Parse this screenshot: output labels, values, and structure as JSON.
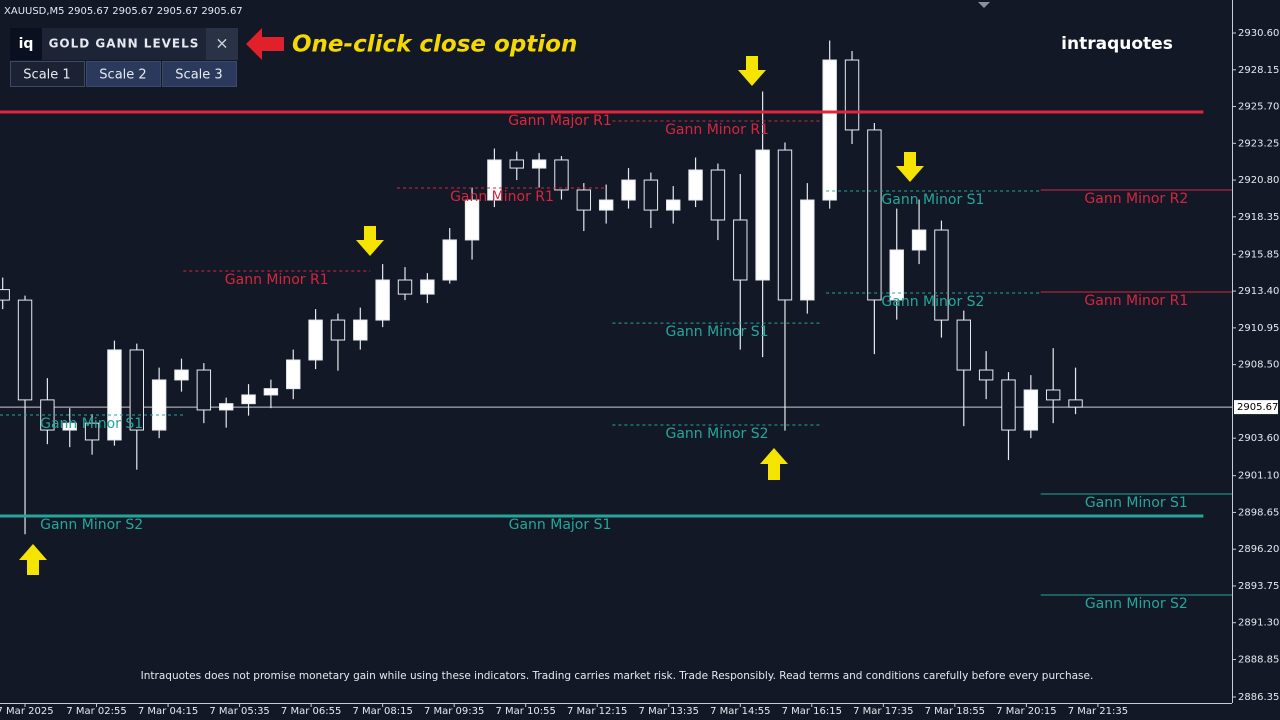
{
  "chart_data": {
    "type": "candlestick",
    "symbol_info": "XAUUSD,M5  2905.67 2905.67 2905.67 2905.67",
    "x": [
      -25,
      0,
      25,
      50,
      75,
      100,
      125,
      150,
      175,
      200,
      225,
      250,
      275,
      300,
      325,
      350,
      375,
      400,
      425,
      450,
      475,
      500,
      525,
      550,
      575,
      600,
      625,
      650,
      675,
      700,
      725,
      750,
      775,
      800,
      825,
      850,
      875,
      900,
      925,
      950,
      975,
      1000,
      1025,
      1050,
      1075,
      1100,
      1125,
      1150,
      1175
    ],
    "open": [
      2913.5,
      2912.8,
      2906.15,
      2904.14,
      2904.6,
      2903.48,
      2909.48,
      2904.14,
      2907.48,
      2908.14,
      2905.48,
      2905.9,
      2906.48,
      2906.9,
      2908.81,
      2911.47,
      2910.14,
      2911.47,
      2914.14,
      2913.2,
      2914.14,
      2916.81,
      2919.47,
      2922.14,
      2921.6,
      2922.14,
      2920.14,
      2918.8,
      2919.47,
      2920.8,
      2918.8,
      2919.47,
      2921.47,
      2918.14,
      2914.14,
      2922.8,
      2912.81,
      2919.47,
      2928.8,
      2924.14,
      2912.81,
      2916.14,
      2917.47,
      2911.47,
      2908.14,
      2907.48,
      2904.14,
      2906.81,
      2906.15
    ],
    "high": [
      2914.3,
      2913.1,
      2907.6,
      2905.6,
      2905.2,
      2910.1,
      2909.9,
      2908.3,
      2908.9,
      2908.6,
      2906.3,
      2907.2,
      2907.5,
      2909.5,
      2912.2,
      2911.9,
      2912.3,
      2915.2,
      2915.0,
      2914.6,
      2917.6,
      2920.3,
      2922.9,
      2922.7,
      2922.6,
      2922.4,
      2920.6,
      2920.5,
      2921.6,
      2921.3,
      2920.4,
      2922.3,
      2921.9,
      2921.2,
      2926.7,
      2923.3,
      2920.6,
      2930.1,
      2929.4,
      2924.6,
      2918.9,
      2919.5,
      2918.1,
      2912.1,
      2909.4,
      2908.0,
      2907.8,
      2909.6,
      2908.3
    ],
    "low": [
      2912.2,
      2897.2,
      2903.2,
      2903.0,
      2902.5,
      2903.1,
      2901.5,
      2903.6,
      2906.7,
      2904.6,
      2904.3,
      2905.1,
      2905.6,
      2906.2,
      2908.2,
      2908.1,
      2909.5,
      2911.0,
      2912.8,
      2912.6,
      2913.9,
      2915.5,
      2919.0,
      2920.8,
      2920.3,
      2919.5,
      2917.4,
      2917.9,
      2918.9,
      2917.6,
      2917.9,
      2919.0,
      2916.8,
      2909.5,
      2909.0,
      2904.1,
      2911.9,
      2918.9,
      2923.2,
      2909.2,
      2911.5,
      2915.2,
      2910.3,
      2904.4,
      2906.2,
      2902.14,
      2903.6,
      2904.6,
      2905.2
    ],
    "close": [
      2912.8,
      2906.15,
      2904.14,
      2904.6,
      2903.48,
      2909.48,
      2904.14,
      2907.48,
      2908.14,
      2905.48,
      2905.9,
      2906.48,
      2906.9,
      2908.81,
      2911.47,
      2910.14,
      2911.47,
      2914.14,
      2913.2,
      2914.14,
      2916.81,
      2919.47,
      2922.14,
      2921.6,
      2922.14,
      2920.14,
      2918.8,
      2919.47,
      2920.8,
      2918.8,
      2919.47,
      2921.47,
      2918.14,
      2914.14,
      2922.8,
      2912.81,
      2919.47,
      2928.8,
      2924.14,
      2912.81,
      2916.14,
      2917.47,
      2911.47,
      2908.14,
      2907.48,
      2904.14,
      2906.81,
      2906.15,
      2905.67
    ],
    "up_color": "#ffffff",
    "down_color": "#121826",
    "wick_color": "#e6e9f0",
    "xlim": [
      -28,
      1350
    ],
    "xticks": [
      {
        "value": 0,
        "label": "7 Mar 2025"
      },
      {
        "value": 80,
        "label": "7 Mar 02:55"
      },
      {
        "value": 160,
        "label": "7 Mar 04:15"
      },
      {
        "value": 240,
        "label": "7 Mar 05:35"
      },
      {
        "value": 320,
        "label": "7 Mar 06:55"
      },
      {
        "value": 400,
        "label": "7 Mar 08:15"
      },
      {
        "value": 480,
        "label": "7 Mar 09:35"
      },
      {
        "value": 560,
        "label": "7 Mar 10:55"
      },
      {
        "value": 640,
        "label": "7 Mar 12:15"
      },
      {
        "value": 720,
        "label": "7 Mar 13:35"
      },
      {
        "value": 800,
        "label": "7 Mar 14:55"
      },
      {
        "value": 880,
        "label": "7 Mar 16:15"
      },
      {
        "value": 960,
        "label": "7 Mar 17:35"
      },
      {
        "value": 1040,
        "label": "7 Mar 18:55"
      },
      {
        "value": 1120,
        "label": "7 Mar 20:15"
      },
      {
        "value": 1200,
        "label": "7 Mar 21:35"
      }
    ],
    "ylim": [
      2885.95,
      2932.8
    ],
    "yticks": [
      {
        "value": 2930.6,
        "label": "2930.60"
      },
      {
        "value": 2928.15,
        "label": "2928.15"
      },
      {
        "value": 2925.7,
        "label": "2925.70"
      },
      {
        "value": 2923.25,
        "label": "2923.25"
      },
      {
        "value": 2920.8,
        "label": "2920.80"
      },
      {
        "value": 2918.35,
        "label": "2918.35"
      },
      {
        "value": 2915.85,
        "label": "2915.85"
      },
      {
        "value": 2913.4,
        "label": "2913.40"
      },
      {
        "value": 2910.95,
        "label": "2910.95"
      },
      {
        "value": 2908.5,
        "label": "2908.50"
      },
      {
        "value": 2903.6,
        "label": "2903.60"
      },
      {
        "value": 2901.1,
        "label": "2901.10"
      },
      {
        "value": 2898.65,
        "label": "2898.65"
      },
      {
        "value": 2896.2,
        "label": "2896.20"
      },
      {
        "value": 2893.75,
        "label": "2893.75"
      },
      {
        "value": 2891.3,
        "label": "2891.30"
      },
      {
        "value": 2888.85,
        "label": "2888.85"
      },
      {
        "value": 2886.35,
        "label": "2886.35"
      }
    ],
    "current_price": {
      "value": 2905.67,
      "label": "2905.67",
      "color": "#c8ccd6"
    },
    "levels": [
      {
        "name": "Gann Major R1",
        "value": 2925.34,
        "from": -28,
        "to": 1318,
        "color": "#e0263a",
        "style": "major"
      },
      {
        "name": "Gann Major S1",
        "value": 2898.41,
        "from": -28,
        "to": 1318,
        "color": "#26a69a",
        "style": "major"
      },
      {
        "name": "Gann Minor R1",
        "value": 2914.74,
        "from": 177,
        "to": 386,
        "color": "#d6263e",
        "style": "dashed"
      },
      {
        "name": "Gann Minor S1",
        "value": 2905.14,
        "from": -28,
        "to": 177,
        "color": "#26a69a",
        "style": "dashed"
      },
      {
        "name": "Gann Minor S2",
        "value": 2898.41,
        "from": -28,
        "to": 177,
        "color": "#26a69a",
        "style": "dashed"
      },
      {
        "name": "Gann Minor R1",
        "value": 2920.27,
        "from": 416,
        "to": 651,
        "color": "#d6263e",
        "style": "dashed"
      },
      {
        "name": "Gann Minor R1",
        "value": 2924.74,
        "from": 657,
        "to": 891,
        "color": "#d6263e",
        "style": "dashed"
      },
      {
        "name": "Gann Minor S1",
        "value": 2911.27,
        "from": 657,
        "to": 891,
        "color": "#26a69a",
        "style": "dashed"
      },
      {
        "name": "Gann Minor S2",
        "value": 2904.48,
        "from": 657,
        "to": 891,
        "color": "#26a69a",
        "style": "dashed"
      },
      {
        "name": "Gann Minor S1",
        "value": 2920.07,
        "from": 896,
        "to": 1135,
        "color": "#26a69a",
        "style": "dashed"
      },
      {
        "name": "Gann Minor S2",
        "value": 2913.27,
        "from": 896,
        "to": 1135,
        "color": "#26a69a",
        "style": "dashed"
      },
      {
        "name": "Gann Minor R2",
        "value": 2920.14,
        "from": 1136,
        "to": 1350,
        "color": "#d6263e",
        "style": "solid"
      },
      {
        "name": "Gann Minor R1",
        "value": 2913.34,
        "from": 1136,
        "to": 1350,
        "color": "#d6263e",
        "style": "solid"
      },
      {
        "name": "Gann Minor S1",
        "value": 2899.88,
        "from": 1136,
        "to": 1350,
        "color": "#26a69a",
        "style": "solid"
      },
      {
        "name": "Gann Minor S2",
        "value": 2893.15,
        "from": 1136,
        "to": 1350,
        "color": "#26a69a",
        "style": "solid"
      }
    ]
  },
  "panel": {
    "logo": "iq",
    "title": "GOLD GANN LEVELS",
    "close": "×",
    "tabs": [
      "Scale 1",
      "Scale 2",
      "Scale 3"
    ],
    "active_tab": 0
  },
  "annotation": "One-click close option",
  "brand": "intraquotes",
  "disclaimer": "Intraquotes does not promise monetary gain while using these indicators. Trading carries market risk. Trade Responsibly. Read terms and conditions carefully before every purchase."
}
